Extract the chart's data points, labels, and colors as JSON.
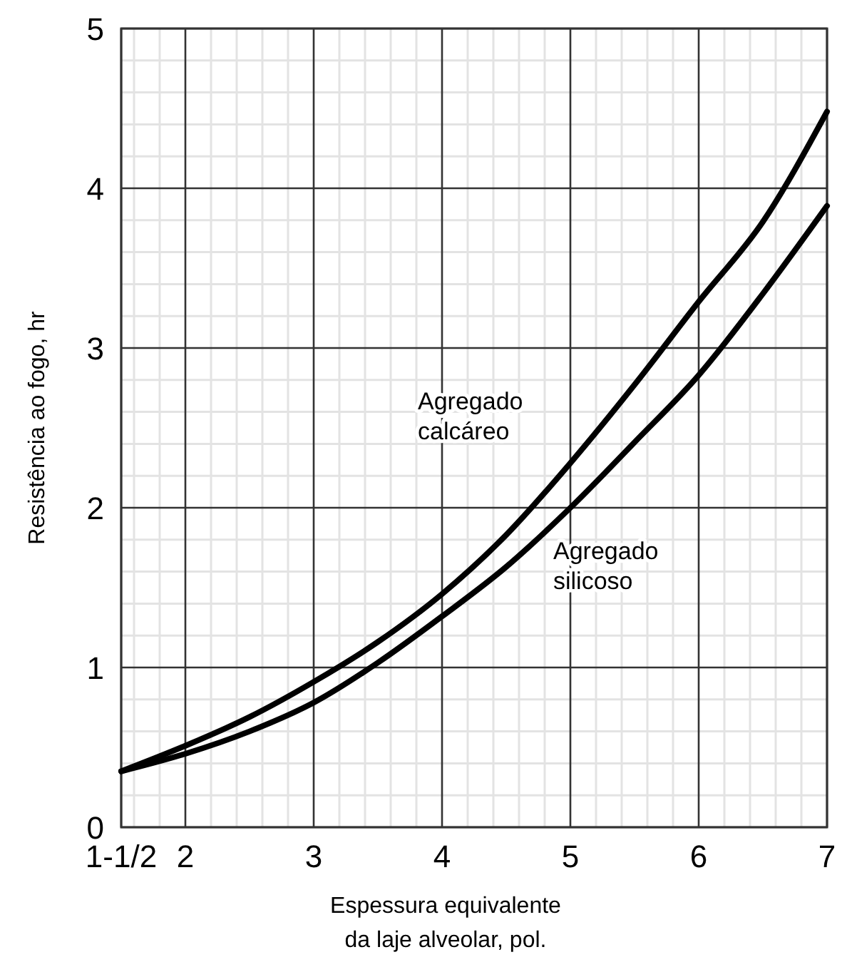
{
  "chart_data": {
    "type": "line",
    "xlabel": "Espessura equivalente\nda laje alveolar, pol.",
    "ylabel": "Resistência ao fogo, hr",
    "x": [
      1.5,
      2,
      2.5,
      3,
      3.5,
      4,
      4.5,
      5,
      5.5,
      6,
      6.5,
      7
    ],
    "series": [
      {
        "name": "Agregado calcáreo",
        "color": "#000000",
        "values": [
          0.35,
          0.51,
          0.69,
          0.91,
          1.16,
          1.46,
          1.83,
          2.28,
          2.77,
          3.29,
          3.79,
          4.48
        ]
      },
      {
        "name": "Agregado silicoso",
        "color": "#000000",
        "values": [
          0.35,
          0.46,
          0.6,
          0.78,
          1.03,
          1.32,
          1.63,
          2.0,
          2.41,
          2.83,
          3.34,
          3.89
        ]
      }
    ],
    "xlim": [
      1.5,
      7
    ],
    "xticks": [
      {
        "value": 1.5,
        "label": "1-1/2"
      },
      {
        "value": 1.6,
        "label": null
      },
      {
        "value": 1.8,
        "label": null
      },
      2,
      {
        "value": 2.2,
        "label": null
      },
      {
        "value": 2.4,
        "label": null
      },
      {
        "value": 2.6,
        "label": null
      },
      {
        "value": 2.8,
        "label": null
      },
      3,
      {
        "value": 3.2,
        "label": null
      },
      {
        "value": 3.4,
        "label": null
      },
      {
        "value": 3.6,
        "label": null
      },
      {
        "value": 3.8,
        "label": null
      },
      4,
      {
        "value": 4.2,
        "label": null
      },
      {
        "value": 4.4,
        "label": null
      },
      {
        "value": 4.6,
        "label": null
      },
      {
        "value": 4.8,
        "label": null
      },
      5,
      {
        "value": 5.2,
        "label": null
      },
      {
        "value": 5.4,
        "label": null
      },
      {
        "value": 5.6,
        "label": null
      },
      {
        "value": 5.8,
        "label": null
      },
      6,
      {
        "value": 6.2,
        "label": null
      },
      {
        "value": 6.4,
        "label": null
      },
      {
        "value": 6.6,
        "label": null
      },
      {
        "value": 6.8,
        "label": null
      },
      7
    ],
    "ylim": [
      0,
      5
    ],
    "yticks": [
      0,
      {
        "value": 0.2,
        "label": null
      },
      {
        "value": 0.4,
        "label": null
      },
      {
        "value": 0.6,
        "label": null
      },
      {
        "value": 0.8,
        "label": null
      },
      1,
      {
        "value": 1.2,
        "label": null
      },
      {
        "value": 1.4,
        "label": null
      },
      {
        "value": 1.6,
        "label": null
      },
      {
        "value": 1.8,
        "label": null
      },
      2,
      {
        "value": 2.2,
        "label": null
      },
      {
        "value": 2.4,
        "label": null
      },
      {
        "value": 2.6,
        "label": null
      },
      {
        "value": 2.8,
        "label": null
      },
      3,
      {
        "value": 3.2,
        "label": null
      },
      {
        "value": 3.4,
        "label": null
      },
      {
        "value": 3.6,
        "label": null
      },
      {
        "value": 3.8,
        "label": null
      },
      4,
      {
        "value": 4.2,
        "label": null
      },
      {
        "value": 4.4,
        "label": null
      },
      {
        "value": 4.6,
        "label": null
      },
      {
        "value": 4.8,
        "label": null
      },
      5
    ],
    "grid": true,
    "marker": "none",
    "line_style": "solid"
  }
}
